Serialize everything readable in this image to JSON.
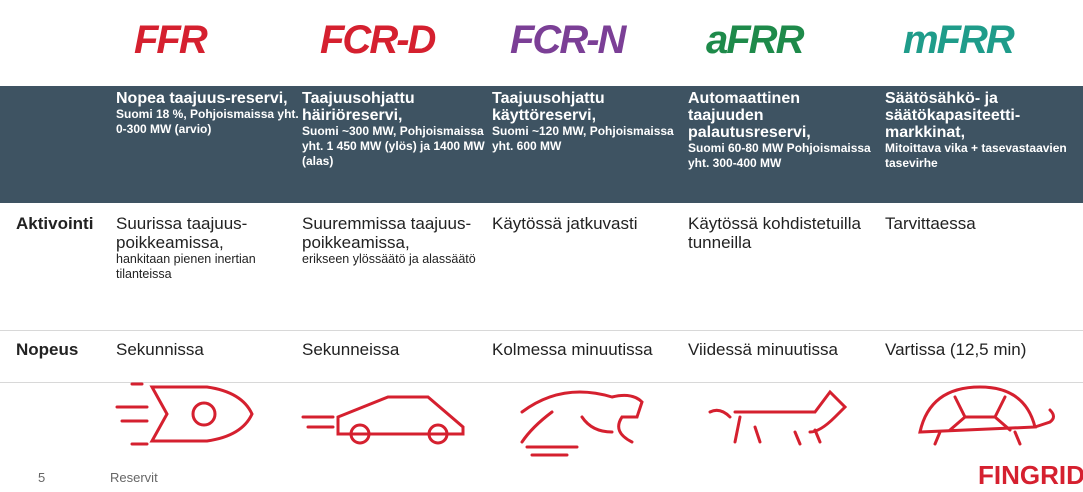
{
  "logos": [
    "FFR",
    "FCR-D",
    "FCR-N",
    "aFRR",
    "mFRR"
  ],
  "header": [
    {
      "title": "Nopea taajuus-reservi,",
      "detail": "Suomi 18 %, Pohjoismaissa yht. 0-300 MW (arvio)"
    },
    {
      "title": "Taajuusohjattu häiriöreservi,",
      "detail": "Suomi ~300 MW, Pohjoismaissa yht. 1 450 MW (ylös) ja 1400 MW (alas)"
    },
    {
      "title": "Taajuusohjattu käyttöreservi,",
      "detail": "Suomi ~120 MW, Pohjoismaissa yht. 600 MW"
    },
    {
      "title": "Automaattinen taajuuden palautusreservi,",
      "detail": "Suomi 60-80 MW Pohjoismaissa yht. 300-400 MW"
    },
    {
      "title": "Säätösähkö- ja säätökapasiteetti-markkinat,",
      "detail": "Mitoittava vika + tasevastaavien tasevirhe"
    }
  ],
  "rows": [
    {
      "label": "Aktivointi",
      "cells": [
        {
          "main": "Suurissa taajuus-poikkeamissa,",
          "note": "hankitaan pienen inertian tilanteissa"
        },
        {
          "main": "Suuremmissa taajuus-poikkeamissa,",
          "note": "erikseen ylössäätö ja alassäätö"
        },
        {
          "main": "Käytössä jatkuvasti"
        },
        {
          "main": "Käytössä kohdistetuilla tunneilla"
        },
        {
          "main": "Tarvittaessa"
        }
      ]
    },
    {
      "label": "Nopeus",
      "cells": [
        {
          "main": "Sekunnissa"
        },
        {
          "main": "Sekunneissa"
        },
        {
          "main": "Kolmessa minuutissa"
        },
        {
          "main": "Viidessä minuutissa"
        },
        {
          "main": "Vartissa (12,5 min)"
        }
      ]
    }
  ],
  "footer": {
    "page": "5",
    "section": "Reservit",
    "brand": "FINGRID"
  }
}
